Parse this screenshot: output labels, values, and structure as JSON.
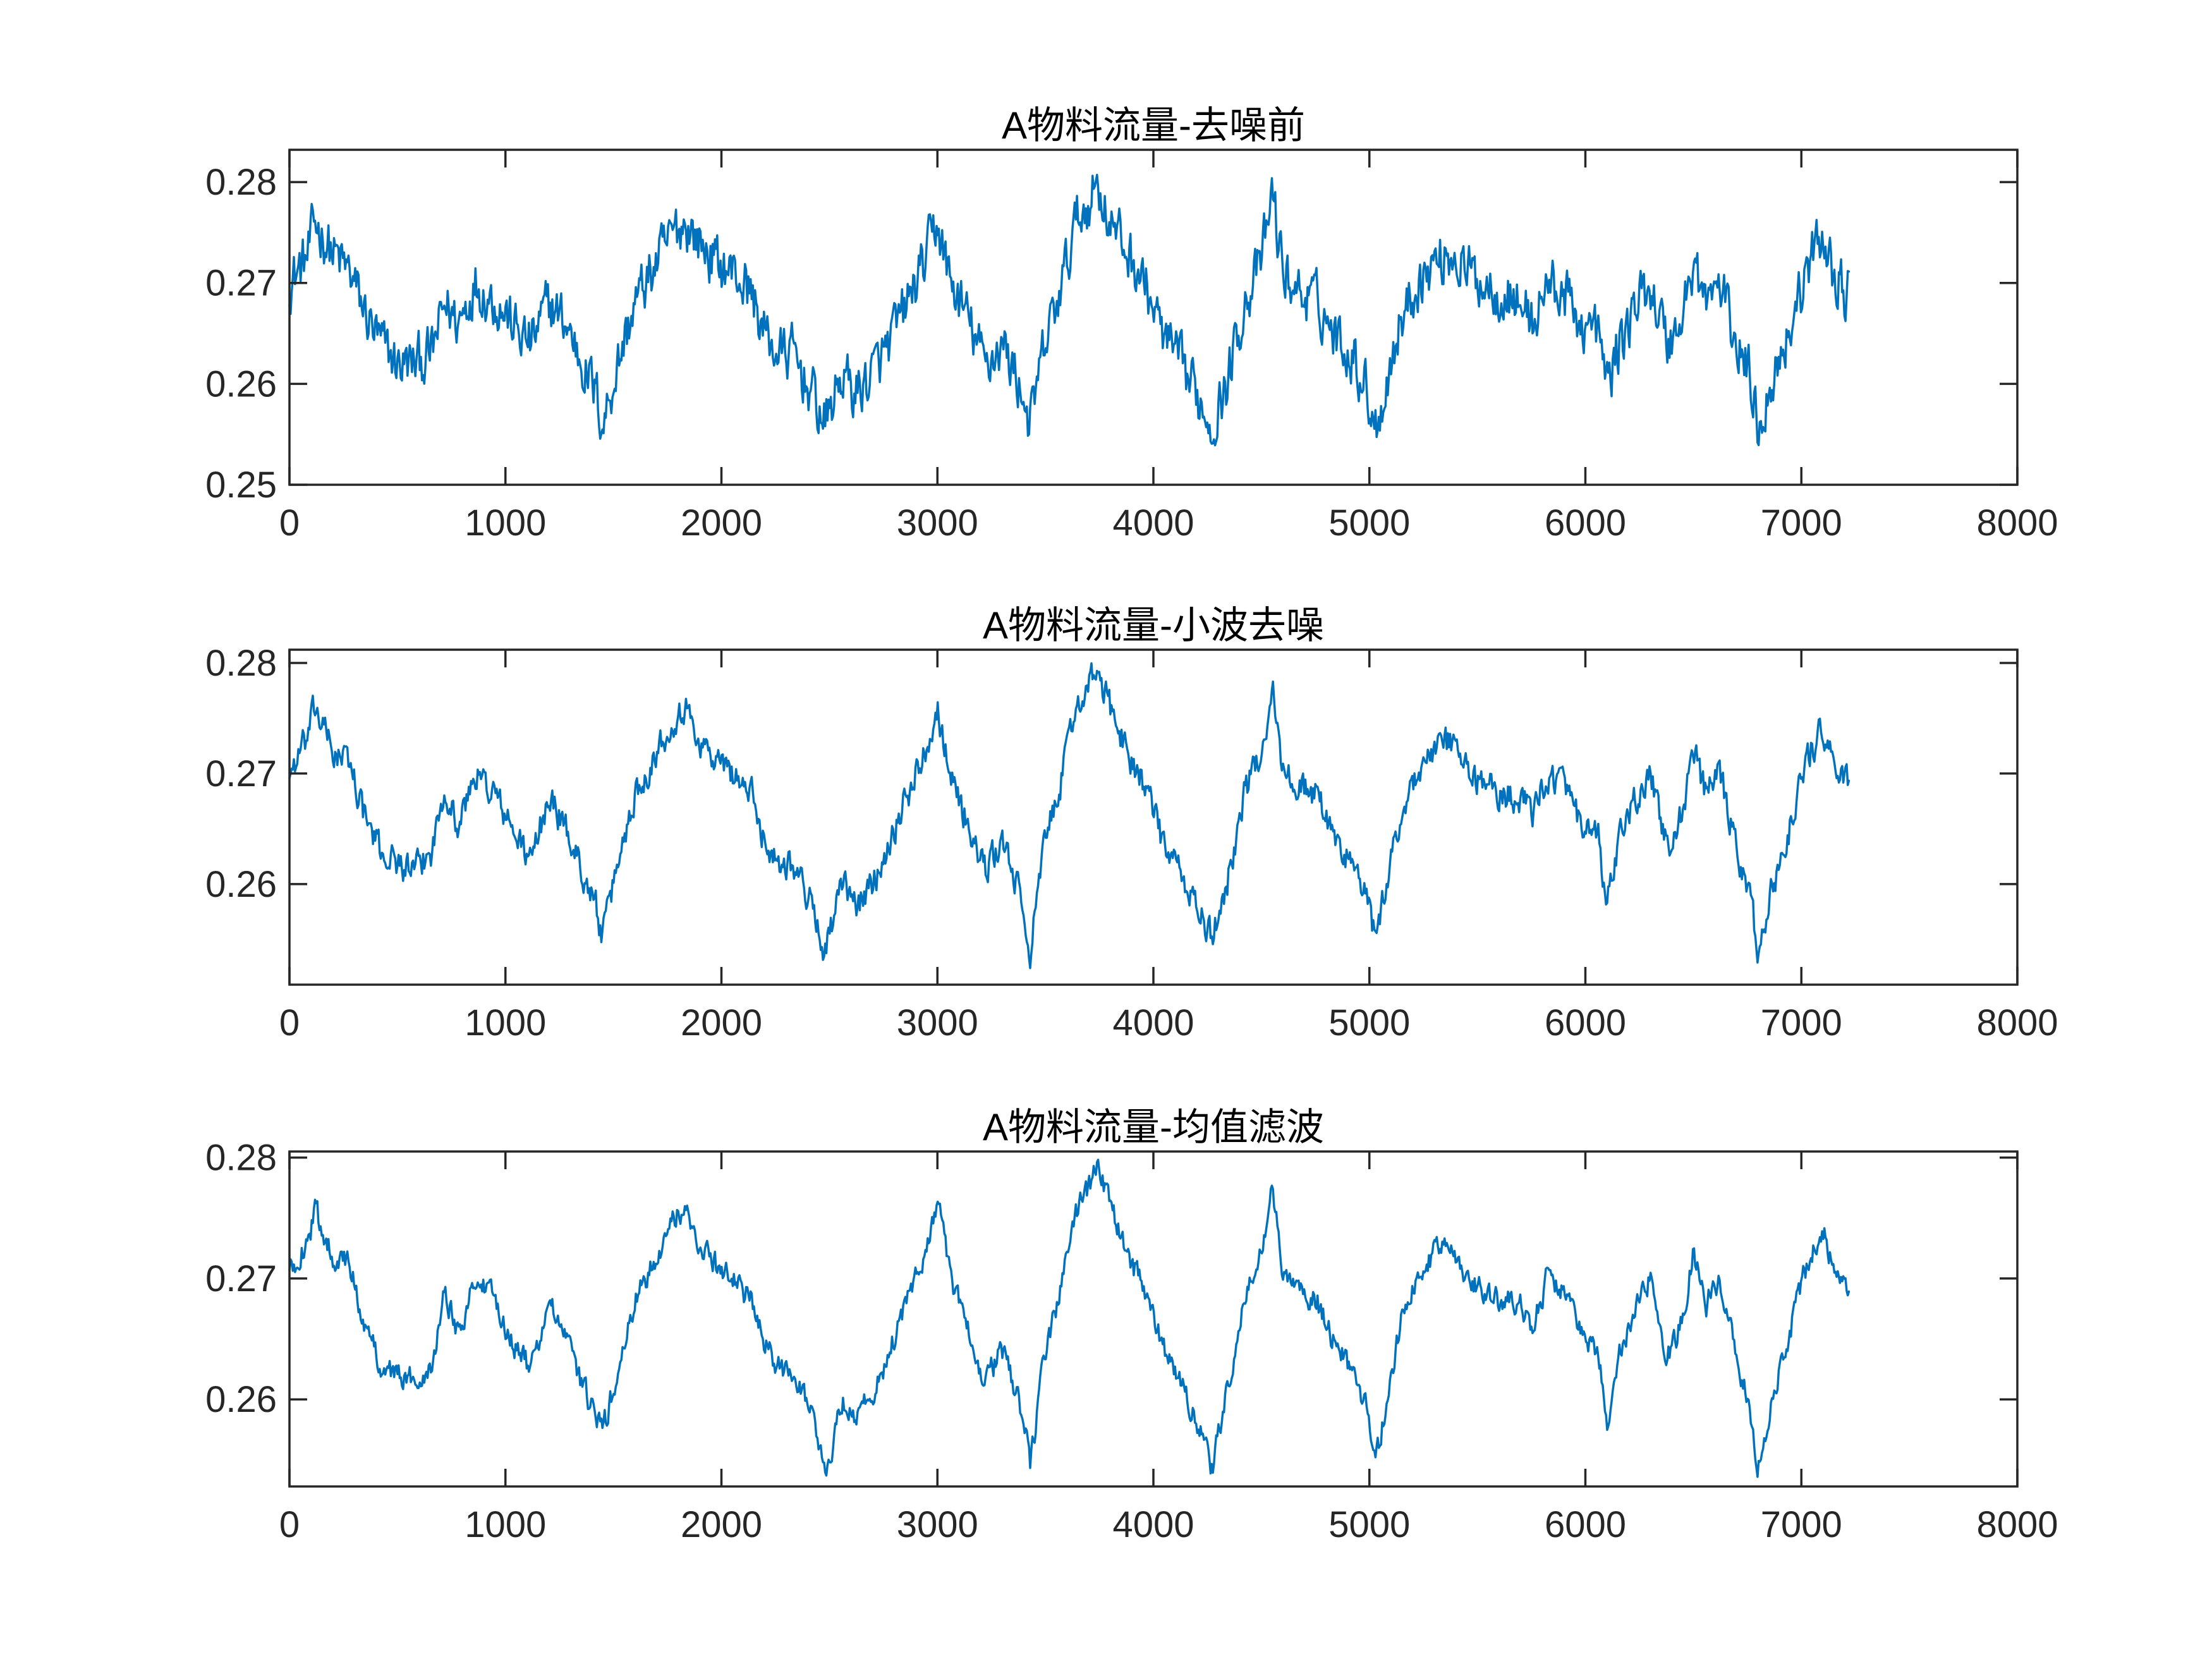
{
  "chart_data": [
    {
      "type": "line",
      "title": "A物料流量-去噪前",
      "xlabel": "",
      "ylabel": "",
      "xlim": [
        0,
        8000
      ],
      "ylim": [
        0.25,
        0.2832
      ],
      "xticks": [
        0,
        1000,
        2000,
        3000,
        4000,
        5000,
        6000,
        7000,
        8000
      ],
      "xtick_labels": [
        "0",
        "1000",
        "2000",
        "3000",
        "4000",
        "5000",
        "6000",
        "7000",
        "8000"
      ],
      "yticks": [
        0.25,
        0.26,
        0.27,
        0.28
      ],
      "ytick_labels": [
        "0.25",
        "0.26",
        "0.27",
        "0.28"
      ],
      "grid": false,
      "color": "#0072BD",
      "noise": 0.0042,
      "x": [
        0,
        80,
        120,
        200,
        280,
        350,
        420,
        500,
        580,
        660,
        720,
        780,
        860,
        960,
        1000,
        1060,
        1120,
        1200,
        1280,
        1360,
        1420,
        1450,
        1520,
        1600,
        1700,
        1780,
        1830,
        1900,
        1980,
        2060,
        2140,
        2200,
        2260,
        2330,
        2420,
        2480,
        2560,
        2620,
        2700,
        2780,
        2860,
        2940,
        3000,
        3060,
        3130,
        3220,
        3300,
        3380,
        3430,
        3500,
        3580,
        3640,
        3700,
        3740,
        3800,
        3880,
        3960,
        4040,
        4120,
        4200,
        4270,
        4340,
        4420,
        4500,
        4550,
        4600,
        4680,
        4760,
        4840,
        4920,
        4980,
        5030,
        5080,
        5140,
        5220,
        5300,
        5380,
        5460,
        5540,
        5620,
        5700,
        5760,
        5820,
        5900,
        5980,
        6060,
        6100,
        6160,
        6240,
        6300,
        6380,
        6440,
        6500,
        6560,
        6620,
        6700,
        6760,
        6800,
        6860,
        6920,
        6980,
        7040,
        7100,
        7150,
        7200,
        7220
      ],
      "values": [
        0.27,
        0.2725,
        0.276,
        0.273,
        0.271,
        0.267,
        0.264,
        0.262,
        0.262,
        0.263,
        0.268,
        0.266,
        0.27,
        0.268,
        0.267,
        0.265,
        0.264,
        0.268,
        0.266,
        0.262,
        0.259,
        0.256,
        0.262,
        0.268,
        0.272,
        0.275,
        0.276,
        0.274,
        0.272,
        0.271,
        0.269,
        0.265,
        0.263,
        0.263,
        0.259,
        0.256,
        0.261,
        0.259,
        0.261,
        0.264,
        0.268,
        0.272,
        0.276,
        0.27,
        0.267,
        0.262,
        0.264,
        0.26,
        0.256,
        0.264,
        0.27,
        0.276,
        0.278,
        0.28,
        0.276,
        0.273,
        0.27,
        0.265,
        0.262,
        0.259,
        0.256,
        0.26,
        0.268,
        0.272,
        0.279,
        0.271,
        0.269,
        0.268,
        0.265,
        0.263,
        0.26,
        0.256,
        0.26,
        0.266,
        0.27,
        0.272,
        0.273,
        0.271,
        0.27,
        0.269,
        0.268,
        0.266,
        0.27,
        0.269,
        0.266,
        0.265,
        0.26,
        0.264,
        0.268,
        0.27,
        0.264,
        0.266,
        0.272,
        0.268,
        0.27,
        0.264,
        0.261,
        0.256,
        0.26,
        0.264,
        0.268,
        0.272,
        0.275,
        0.271,
        0.269,
        0.269
      ]
    },
    {
      "type": "line",
      "title": "A物料流量-小波去噪",
      "xlabel": "",
      "ylabel": "",
      "xlim": [
        0,
        8000
      ],
      "ylim": [
        0.2509,
        0.2812
      ],
      "xticks": [
        0,
        1000,
        2000,
        3000,
        4000,
        5000,
        6000,
        7000,
        8000
      ],
      "xtick_labels": [
        "0",
        "1000",
        "2000",
        "3000",
        "4000",
        "5000",
        "6000",
        "7000",
        "8000"
      ],
      "yticks": [
        0.26,
        0.27,
        0.28
      ],
      "ytick_labels": [
        "0.26",
        "0.27",
        "0.28"
      ],
      "grid": false,
      "color": "#0072BD",
      "noise": 0.0022,
      "x": [
        0,
        80,
        120,
        200,
        280,
        350,
        420,
        500,
        580,
        660,
        720,
        780,
        860,
        960,
        1000,
        1060,
        1120,
        1200,
        1280,
        1360,
        1420,
        1450,
        1520,
        1600,
        1700,
        1780,
        1830,
        1900,
        1980,
        2060,
        2140,
        2200,
        2260,
        2330,
        2420,
        2480,
        2560,
        2620,
        2700,
        2780,
        2860,
        2940,
        3000,
        3060,
        3130,
        3220,
        3300,
        3380,
        3430,
        3500,
        3580,
        3640,
        3700,
        3740,
        3800,
        3880,
        3960,
        4040,
        4120,
        4200,
        4270,
        4340,
        4420,
        4500,
        4550,
        4600,
        4680,
        4760,
        4840,
        4920,
        4980,
        5030,
        5080,
        5140,
        5220,
        5300,
        5380,
        5460,
        5540,
        5620,
        5700,
        5760,
        5820,
        5900,
        5980,
        6060,
        6100,
        6160,
        6240,
        6300,
        6380,
        6440,
        6500,
        6560,
        6620,
        6700,
        6760,
        6800,
        6860,
        6920,
        6980,
        7040,
        7100,
        7150,
        7200,
        7220
      ],
      "values": [
        0.27,
        0.273,
        0.276,
        0.272,
        0.271,
        0.266,
        0.263,
        0.262,
        0.261,
        0.263,
        0.269,
        0.265,
        0.27,
        0.268,
        0.266,
        0.264,
        0.262,
        0.268,
        0.265,
        0.261,
        0.258,
        0.255,
        0.262,
        0.268,
        0.272,
        0.275,
        0.276,
        0.273,
        0.271,
        0.27,
        0.268,
        0.264,
        0.262,
        0.262,
        0.258,
        0.254,
        0.26,
        0.258,
        0.26,
        0.264,
        0.268,
        0.272,
        0.276,
        0.27,
        0.266,
        0.261,
        0.264,
        0.259,
        0.254,
        0.264,
        0.27,
        0.276,
        0.278,
        0.279,
        0.276,
        0.272,
        0.269,
        0.264,
        0.261,
        0.258,
        0.255,
        0.26,
        0.268,
        0.272,
        0.278,
        0.27,
        0.269,
        0.268,
        0.264,
        0.262,
        0.259,
        0.255,
        0.26,
        0.266,
        0.27,
        0.272,
        0.273,
        0.27,
        0.269,
        0.268,
        0.268,
        0.266,
        0.27,
        0.269,
        0.265,
        0.264,
        0.258,
        0.264,
        0.268,
        0.27,
        0.263,
        0.266,
        0.272,
        0.268,
        0.27,
        0.263,
        0.259,
        0.254,
        0.259,
        0.263,
        0.268,
        0.272,
        0.274,
        0.271,
        0.269,
        0.269
      ]
    },
    {
      "type": "line",
      "title": "A物料流量-均值滤波",
      "xlabel": "",
      "ylabel": "",
      "xlim": [
        0,
        8000
      ],
      "ylim": [
        0.2528,
        0.2805
      ],
      "xticks": [
        0,
        1000,
        2000,
        3000,
        4000,
        5000,
        6000,
        7000,
        8000
      ],
      "xtick_labels": [
        "0",
        "1000",
        "2000",
        "3000",
        "4000",
        "5000",
        "6000",
        "7000",
        "8000"
      ],
      "yticks": [
        0.26,
        0.27,
        0.28
      ],
      "ytick_labels": [
        "0.26",
        "0.27",
        "0.28"
      ],
      "grid": false,
      "color": "#0072BD",
      "noise": 0.0016,
      "x": [
        0,
        80,
        120,
        200,
        280,
        350,
        420,
        500,
        580,
        660,
        720,
        780,
        860,
        960,
        1000,
        1060,
        1120,
        1200,
        1280,
        1360,
        1420,
        1450,
        1520,
        1600,
        1700,
        1780,
        1830,
        1900,
        1980,
        2060,
        2140,
        2200,
        2260,
        2330,
        2420,
        2480,
        2560,
        2620,
        2700,
        2780,
        2860,
        2940,
        3000,
        3060,
        3130,
        3220,
        3300,
        3380,
        3430,
        3500,
        3580,
        3640,
        3700,
        3740,
        3800,
        3880,
        3960,
        4040,
        4120,
        4200,
        4270,
        4340,
        4420,
        4500,
        4550,
        4600,
        4680,
        4760,
        4840,
        4920,
        4980,
        5030,
        5080,
        5140,
        5220,
        5300,
        5380,
        5460,
        5540,
        5620,
        5700,
        5760,
        5820,
        5900,
        5980,
        6060,
        6100,
        6160,
        6240,
        6300,
        6380,
        6440,
        6500,
        6560,
        6620,
        6700,
        6760,
        6800,
        6860,
        6920,
        6980,
        7040,
        7100,
        7150,
        7200,
        7220
      ],
      "values": [
        0.2705,
        0.273,
        0.2755,
        0.272,
        0.271,
        0.266,
        0.263,
        0.262,
        0.2615,
        0.263,
        0.269,
        0.2655,
        0.27,
        0.268,
        0.266,
        0.264,
        0.2625,
        0.268,
        0.265,
        0.261,
        0.2585,
        0.2575,
        0.262,
        0.268,
        0.272,
        0.275,
        0.2755,
        0.273,
        0.271,
        0.27,
        0.268,
        0.2645,
        0.2625,
        0.2625,
        0.259,
        0.2535,
        0.26,
        0.2585,
        0.2605,
        0.264,
        0.268,
        0.272,
        0.2765,
        0.27,
        0.2665,
        0.2615,
        0.264,
        0.26,
        0.2545,
        0.264,
        0.27,
        0.2755,
        0.2775,
        0.2795,
        0.276,
        0.272,
        0.269,
        0.2645,
        0.2615,
        0.2585,
        0.254,
        0.2605,
        0.268,
        0.272,
        0.278,
        0.27,
        0.269,
        0.268,
        0.2645,
        0.2625,
        0.2595,
        0.255,
        0.26,
        0.266,
        0.27,
        0.272,
        0.273,
        0.27,
        0.269,
        0.268,
        0.268,
        0.266,
        0.27,
        0.269,
        0.2655,
        0.264,
        0.257,
        0.264,
        0.268,
        0.27,
        0.2635,
        0.266,
        0.272,
        0.268,
        0.27,
        0.2635,
        0.2595,
        0.2545,
        0.2595,
        0.2635,
        0.268,
        0.272,
        0.274,
        0.271,
        0.269,
        0.269
      ]
    }
  ]
}
